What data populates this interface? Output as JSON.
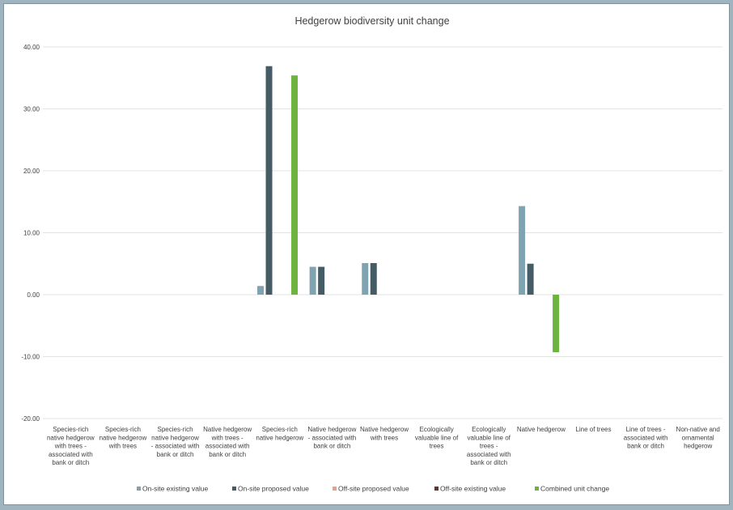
{
  "chart_data": {
    "type": "bar",
    "title": "Hedgerow biodiversity unit change",
    "xlabel": "",
    "ylabel": "",
    "ylim": [
      -20,
      40
    ],
    "yticks": [
      "-20.00",
      "-10.00",
      "0.00",
      "10.00",
      "20.00",
      "30.00",
      "40.00"
    ],
    "grid": true,
    "legend_position": "bottom",
    "categories": [
      [
        "Species-rich",
        "native hedgerow",
        "with trees -",
        "associated with",
        "bank or ditch"
      ],
      [
        "Species-rich",
        "native hedgerow",
        "with trees"
      ],
      [
        "Species-rich",
        "native hedgerow",
        "- associated with",
        "bank or ditch"
      ],
      [
        "Native hedgerow",
        "with trees -",
        "associated with",
        "bank or ditch"
      ],
      [
        "Species-rich",
        "native hedgerow"
      ],
      [
        "Native hedgerow",
        "- associated with",
        "bank or ditch"
      ],
      [
        "Native hedgerow",
        "with trees"
      ],
      [
        "Ecologically",
        "valuable line of",
        "trees"
      ],
      [
        "Ecologically",
        "valuable line of",
        "trees -",
        "associated with",
        "bank or ditch"
      ],
      [
        "Native hedgerow"
      ],
      [
        "Line of trees"
      ],
      [
        "Line of trees -",
        "associated with",
        "bank or ditch"
      ],
      [
        "Non-native and",
        "ornamental",
        "hedgerow"
      ]
    ],
    "series": [
      {
        "name": "On-site existing value",
        "color": "#7fa3b0",
        "values": [
          0,
          0,
          0,
          0,
          1.4,
          4.5,
          5.1,
          0,
          0,
          14.3,
          0,
          0,
          0
        ]
      },
      {
        "name": "On-site proposed value",
        "color": "#455c66",
        "values": [
          0,
          0,
          0,
          0,
          36.9,
          4.5,
          5.1,
          0,
          0,
          5.0,
          0,
          0,
          0
        ]
      },
      {
        "name": "Off-site proposed value",
        "color": "#e2a58c",
        "values": [
          0,
          0,
          0,
          0,
          0,
          0,
          0,
          0,
          0,
          0,
          0,
          0,
          0
        ]
      },
      {
        "name": "Off-site existing value",
        "color": "#6b3326",
        "values": [
          0,
          0,
          0,
          0,
          0,
          0,
          0,
          0,
          0,
          0,
          0,
          0,
          0
        ]
      },
      {
        "name": "Combined unit change",
        "color": "#6db33f",
        "values": [
          0,
          0,
          0,
          0,
          35.4,
          0,
          0,
          0,
          0,
          -9.3,
          0,
          0,
          0
        ]
      }
    ]
  }
}
